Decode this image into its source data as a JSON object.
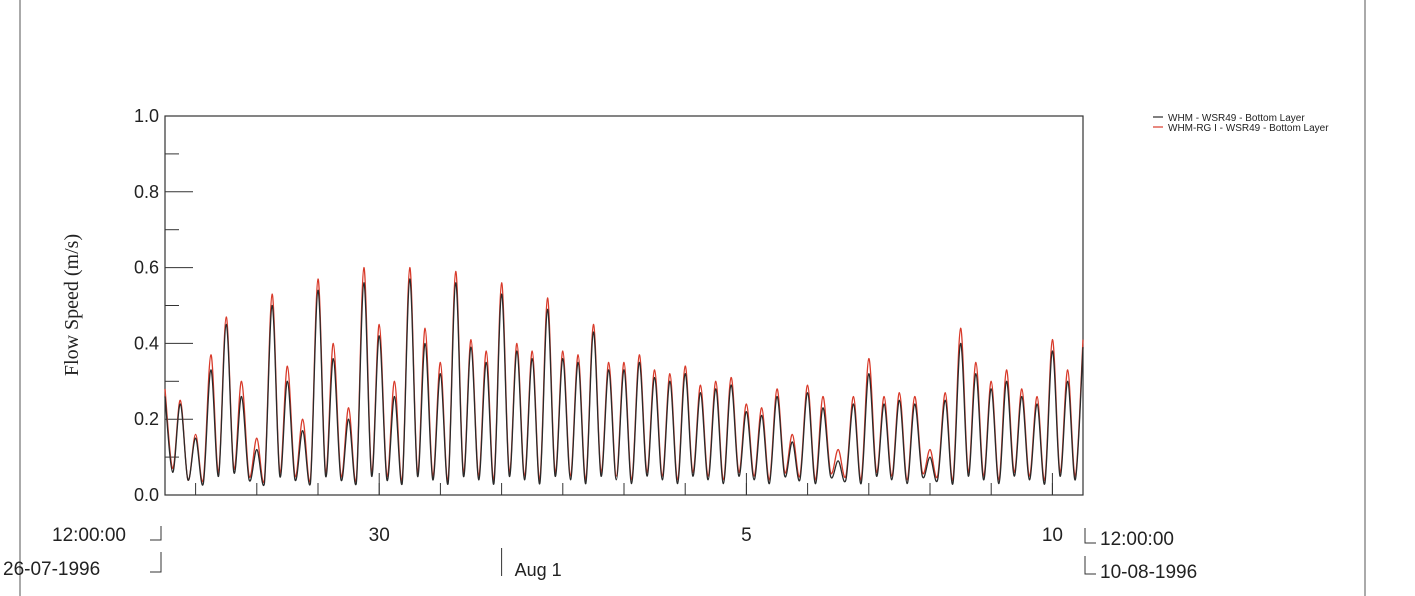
{
  "chart_data": {
    "type": "line",
    "title": "",
    "xlabel": "",
    "ylabel": "Flow Speed (m/s)",
    "ylim": [
      0,
      1.0
    ],
    "yticks": [
      "0.0",
      "0.2",
      "0.4",
      "0.6",
      "0.8",
      "1.0"
    ],
    "xlim": [
      "1996-07-26 12:00",
      "1996-08-10 12:00"
    ],
    "xticks": [
      {
        "label": "30",
        "x": "1996-07-30 00:00"
      },
      {
        "label": "5",
        "x": "1996-08-05 00:00"
      },
      {
        "label": "10",
        "x": "1996-08-10 00:00"
      }
    ],
    "start_label": {
      "time": "12:00:00",
      "date": "26-07-1996"
    },
    "end_label": {
      "time": "12:00:00",
      "date": "10-08-1996"
    },
    "month_marker": {
      "label": "Aug 1",
      "x": "1996-08-01 00:00"
    },
    "grid": false,
    "legend_position": "top-right",
    "series": [
      {
        "name": "WHM - WSR49 - Bottom Layer",
        "color": "#2a2a2a",
        "x": [
          "1996-07-26 12:00",
          "1996-07-26 15:00",
          "1996-07-26 18:00",
          "1996-07-26 21:00",
          "1996-07-27 00:00",
          "1996-07-27 03:00",
          "1996-07-27 06:00",
          "1996-07-27 09:00",
          "1996-07-27 12:00",
          "1996-07-27 15:00",
          "1996-07-27 18:00",
          "1996-07-27 21:00",
          "1996-07-28 00:00",
          "1996-07-28 03:00",
          "1996-07-28 06:00",
          "1996-07-28 09:00",
          "1996-07-28 12:00",
          "1996-07-28 15:00",
          "1996-07-28 18:00",
          "1996-07-28 21:00",
          "1996-07-29 00:00",
          "1996-07-29 03:00",
          "1996-07-29 06:00",
          "1996-07-29 09:00",
          "1996-07-29 12:00",
          "1996-07-29 15:00",
          "1996-07-29 18:00",
          "1996-07-29 21:00",
          "1996-07-30 00:00",
          "1996-07-30 03:00",
          "1996-07-30 06:00",
          "1996-07-30 09:00",
          "1996-07-30 12:00",
          "1996-07-30 15:00",
          "1996-07-30 18:00",
          "1996-07-30 21:00",
          "1996-07-31 00:00",
          "1996-07-31 03:00",
          "1996-07-31 06:00",
          "1996-07-31 09:00",
          "1996-07-31 12:00",
          "1996-07-31 15:00",
          "1996-07-31 18:00",
          "1996-07-31 21:00",
          "1996-08-01 00:00",
          "1996-08-01 03:00",
          "1996-08-01 06:00",
          "1996-08-01 09:00",
          "1996-08-01 12:00",
          "1996-08-01 15:00",
          "1996-08-01 18:00",
          "1996-08-01 21:00",
          "1996-08-02 00:00",
          "1996-08-02 03:00",
          "1996-08-02 06:00",
          "1996-08-02 09:00",
          "1996-08-02 12:00",
          "1996-08-02 15:00",
          "1996-08-02 18:00",
          "1996-08-02 21:00",
          "1996-08-03 00:00",
          "1996-08-03 03:00",
          "1996-08-03 06:00",
          "1996-08-03 09:00",
          "1996-08-03 12:00",
          "1996-08-03 15:00",
          "1996-08-03 18:00",
          "1996-08-03 21:00",
          "1996-08-04 00:00",
          "1996-08-04 03:00",
          "1996-08-04 06:00",
          "1996-08-04 09:00",
          "1996-08-04 12:00",
          "1996-08-04 15:00",
          "1996-08-04 18:00",
          "1996-08-04 21:00",
          "1996-08-05 00:00",
          "1996-08-05 03:00",
          "1996-08-05 06:00",
          "1996-08-05 09:00",
          "1996-08-05 12:00",
          "1996-08-05 15:00",
          "1996-08-05 18:00",
          "1996-08-05 21:00",
          "1996-08-06 00:00",
          "1996-08-06 03:00",
          "1996-08-06 06:00",
          "1996-08-06 09:00",
          "1996-08-06 12:00",
          "1996-08-06 15:00",
          "1996-08-06 18:00",
          "1996-08-06 21:00",
          "1996-08-07 00:00",
          "1996-08-07 03:00",
          "1996-08-07 06:00",
          "1996-08-07 09:00",
          "1996-08-07 12:00",
          "1996-08-07 15:00",
          "1996-08-07 18:00",
          "1996-08-07 21:00",
          "1996-08-08 00:00",
          "1996-08-08 03:00",
          "1996-08-08 06:00",
          "1996-08-08 09:00",
          "1996-08-08 12:00",
          "1996-08-08 15:00",
          "1996-08-08 18:00",
          "1996-08-08 21:00",
          "1996-08-09 00:00",
          "1996-08-09 03:00",
          "1996-08-09 06:00",
          "1996-08-09 09:00",
          "1996-08-09 12:00",
          "1996-08-09 15:00",
          "1996-08-09 18:00",
          "1996-08-09 21:00",
          "1996-08-10 00:00",
          "1996-08-10 03:00",
          "1996-08-10 06:00",
          "1996-08-10 09:00",
          "1996-08-10 12:00"
        ],
        "y": [
          0.26,
          0.06,
          0.24,
          0.04,
          0.15,
          0.03,
          0.33,
          0.05,
          0.45,
          0.06,
          0.26,
          0.04,
          0.12,
          0.03,
          0.5,
          0.05,
          0.3,
          0.04,
          0.17,
          0.03,
          0.54,
          0.05,
          0.36,
          0.04,
          0.2,
          0.03,
          0.56,
          0.05,
          0.42,
          0.04,
          0.26,
          0.03,
          0.57,
          0.05,
          0.4,
          0.04,
          0.32,
          0.03,
          0.56,
          0.05,
          0.39,
          0.04,
          0.35,
          0.03,
          0.53,
          0.05,
          0.38,
          0.04,
          0.36,
          0.03,
          0.49,
          0.05,
          0.36,
          0.04,
          0.35,
          0.03,
          0.43,
          0.05,
          0.33,
          0.04,
          0.33,
          0.03,
          0.35,
          0.05,
          0.31,
          0.04,
          0.3,
          0.03,
          0.32,
          0.05,
          0.27,
          0.04,
          0.28,
          0.03,
          0.29,
          0.05,
          0.22,
          0.04,
          0.21,
          0.03,
          0.26,
          0.05,
          0.14,
          0.04,
          0.27,
          0.03,
          0.23,
          0.05,
          0.09,
          0.04,
          0.24,
          0.03,
          0.32,
          0.05,
          0.24,
          0.04,
          0.25,
          0.03,
          0.24,
          0.05,
          0.1,
          0.04,
          0.25,
          0.03,
          0.4,
          0.05,
          0.32,
          0.04,
          0.28,
          0.03,
          0.3,
          0.05,
          0.26,
          0.04,
          0.24,
          0.03,
          0.38,
          0.05,
          0.3,
          0.04,
          0.39
        ]
      },
      {
        "name": "WHM-RG I - WSR49 - Bottom Layer",
        "color": "#d83a2a",
        "x": [
          "1996-07-26 12:00",
          "1996-07-26 15:00",
          "1996-07-26 18:00",
          "1996-07-26 21:00",
          "1996-07-27 00:00",
          "1996-07-27 03:00",
          "1996-07-27 06:00",
          "1996-07-27 09:00",
          "1996-07-27 12:00",
          "1996-07-27 15:00",
          "1996-07-27 18:00",
          "1996-07-27 21:00",
          "1996-07-28 00:00",
          "1996-07-28 03:00",
          "1996-07-28 06:00",
          "1996-07-28 09:00",
          "1996-07-28 12:00",
          "1996-07-28 15:00",
          "1996-07-28 18:00",
          "1996-07-28 21:00",
          "1996-07-29 00:00",
          "1996-07-29 03:00",
          "1996-07-29 06:00",
          "1996-07-29 09:00",
          "1996-07-29 12:00",
          "1996-07-29 15:00",
          "1996-07-29 18:00",
          "1996-07-29 21:00",
          "1996-07-30 00:00",
          "1996-07-30 03:00",
          "1996-07-30 06:00",
          "1996-07-30 09:00",
          "1996-07-30 12:00",
          "1996-07-30 15:00",
          "1996-07-30 18:00",
          "1996-07-30 21:00",
          "1996-07-31 00:00",
          "1996-07-31 03:00",
          "1996-07-31 06:00",
          "1996-07-31 09:00",
          "1996-07-31 12:00",
          "1996-07-31 15:00",
          "1996-07-31 18:00",
          "1996-07-31 21:00",
          "1996-08-01 00:00",
          "1996-08-01 03:00",
          "1996-08-01 06:00",
          "1996-08-01 09:00",
          "1996-08-01 12:00",
          "1996-08-01 15:00",
          "1996-08-01 18:00",
          "1996-08-01 21:00",
          "1996-08-02 00:00",
          "1996-08-02 03:00",
          "1996-08-02 06:00",
          "1996-08-02 09:00",
          "1996-08-02 12:00",
          "1996-08-02 15:00",
          "1996-08-02 18:00",
          "1996-08-02 21:00",
          "1996-08-03 00:00",
          "1996-08-03 03:00",
          "1996-08-03 06:00",
          "1996-08-03 09:00",
          "1996-08-03 12:00",
          "1996-08-03 15:00",
          "1996-08-03 18:00",
          "1996-08-03 21:00",
          "1996-08-04 00:00",
          "1996-08-04 03:00",
          "1996-08-04 06:00",
          "1996-08-04 09:00",
          "1996-08-04 12:00",
          "1996-08-04 15:00",
          "1996-08-04 18:00",
          "1996-08-04 21:00",
          "1996-08-05 00:00",
          "1996-08-05 03:00",
          "1996-08-05 06:00",
          "1996-08-05 09:00",
          "1996-08-05 12:00",
          "1996-08-05 15:00",
          "1996-08-05 18:00",
          "1996-08-05 21:00",
          "1996-08-06 00:00",
          "1996-08-06 03:00",
          "1996-08-06 06:00",
          "1996-08-06 09:00",
          "1996-08-06 12:00",
          "1996-08-06 15:00",
          "1996-08-06 18:00",
          "1996-08-06 21:00",
          "1996-08-07 00:00",
          "1996-08-07 03:00",
          "1996-08-07 06:00",
          "1996-08-07 09:00",
          "1996-08-07 12:00",
          "1996-08-07 15:00",
          "1996-08-07 18:00",
          "1996-08-07 21:00",
          "1996-08-08 00:00",
          "1996-08-08 03:00",
          "1996-08-08 06:00",
          "1996-08-08 09:00",
          "1996-08-08 12:00",
          "1996-08-08 15:00",
          "1996-08-08 18:00",
          "1996-08-08 21:00",
          "1996-08-09 00:00",
          "1996-08-09 03:00",
          "1996-08-09 06:00",
          "1996-08-09 09:00",
          "1996-08-09 12:00",
          "1996-08-09 15:00",
          "1996-08-09 18:00",
          "1996-08-09 21:00",
          "1996-08-10 00:00",
          "1996-08-10 03:00",
          "1996-08-10 06:00",
          "1996-08-10 09:00",
          "1996-08-10 12:00"
        ],
        "y": [
          0.28,
          0.07,
          0.25,
          0.04,
          0.16,
          0.04,
          0.37,
          0.06,
          0.47,
          0.07,
          0.3,
          0.05,
          0.15,
          0.04,
          0.53,
          0.06,
          0.34,
          0.05,
          0.2,
          0.04,
          0.57,
          0.06,
          0.4,
          0.05,
          0.23,
          0.04,
          0.6,
          0.06,
          0.45,
          0.05,
          0.3,
          0.04,
          0.6,
          0.06,
          0.44,
          0.05,
          0.35,
          0.04,
          0.59,
          0.06,
          0.41,
          0.05,
          0.38,
          0.04,
          0.56,
          0.06,
          0.4,
          0.05,
          0.38,
          0.04,
          0.52,
          0.06,
          0.38,
          0.05,
          0.37,
          0.04,
          0.45,
          0.06,
          0.35,
          0.05,
          0.35,
          0.04,
          0.37,
          0.06,
          0.33,
          0.05,
          0.32,
          0.04,
          0.34,
          0.06,
          0.29,
          0.05,
          0.3,
          0.04,
          0.31,
          0.06,
          0.24,
          0.05,
          0.23,
          0.04,
          0.28,
          0.06,
          0.16,
          0.05,
          0.29,
          0.04,
          0.26,
          0.06,
          0.12,
          0.05,
          0.26,
          0.04,
          0.36,
          0.06,
          0.26,
          0.05,
          0.27,
          0.04,
          0.26,
          0.06,
          0.12,
          0.05,
          0.27,
          0.04,
          0.44,
          0.06,
          0.35,
          0.05,
          0.3,
          0.04,
          0.33,
          0.06,
          0.28,
          0.05,
          0.26,
          0.04,
          0.41,
          0.06,
          0.33,
          0.05,
          0.41
        ]
      }
    ]
  }
}
